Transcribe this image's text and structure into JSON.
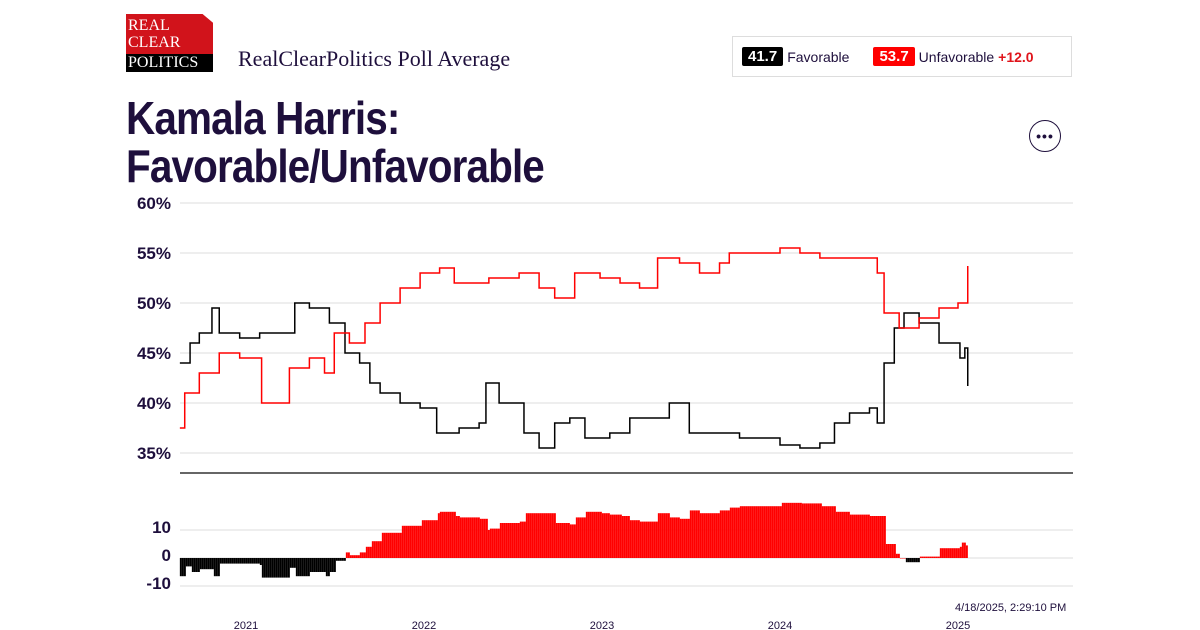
{
  "logo": {
    "line1": "REAL",
    "line2": "CLEAR",
    "line3": "POLITICS"
  },
  "header": {
    "subtitle": "RealClearPolitics Poll Average"
  },
  "legend": {
    "favorable_value": "41.7",
    "favorable_label": "Favorable",
    "unfavorable_value": "53.7",
    "unfavorable_label": "Unfavorable",
    "spread": "+12.0"
  },
  "title": {
    "line1": "Kamala Harris:",
    "line2": "Favorable/Unfavorable"
  },
  "more_button": "•••",
  "timestamp": "4/18/2025, 2:29:10 PM",
  "colors": {
    "favorable": "#000000",
    "unfavorable": "#ff0000",
    "text": "#1e0f3c"
  },
  "chart_data": [
    {
      "type": "line",
      "yticks": [
        "60%",
        "55%",
        "50%",
        "45%",
        "40%",
        "35%"
      ],
      "ylim": [
        35,
        60
      ],
      "xlim": [
        "2020-08-18",
        "2025-01-21"
      ],
      "grid": true,
      "series": [
        {
          "name": "Favorable",
          "color": "#000000",
          "points": [
            [
              "2020-08-18",
              44
            ],
            [
              "2020-09-08",
              46
            ],
            [
              "2020-09-27",
              47
            ],
            [
              "2020-10-23",
              49.5
            ],
            [
              "2020-11-07",
              47
            ],
            [
              "2020-12-19",
              46.5
            ],
            [
              "2021-01-29",
              47
            ],
            [
              "2021-03-11",
              47
            ],
            [
              "2021-04-11",
              50
            ],
            [
              "2021-05-11",
              49.5
            ],
            [
              "2021-06-21",
              48
            ],
            [
              "2021-07-23",
              45
            ],
            [
              "2021-08-22",
              44
            ],
            [
              "2021-09-12",
              42
            ],
            [
              "2021-10-03",
              41
            ],
            [
              "2021-11-13",
              40
            ],
            [
              "2021-12-24",
              39.5
            ],
            [
              "2022-01-27",
              37
            ],
            [
              "2022-03-14",
              37.5
            ],
            [
              "2022-04-24",
              38
            ],
            [
              "2022-05-08",
              42
            ],
            [
              "2022-06-04",
              40
            ],
            [
              "2022-07-05",
              40
            ],
            [
              "2022-07-25",
              37
            ],
            [
              "2022-08-25",
              35.5
            ],
            [
              "2022-09-26",
              38
            ],
            [
              "2022-10-27",
              38.5
            ],
            [
              "2022-11-27",
              36.5
            ],
            [
              "2023-01-17",
              37
            ],
            [
              "2023-02-27",
              38.5
            ],
            [
              "2023-04-09",
              38.5
            ],
            [
              "2023-05-19",
              40
            ],
            [
              "2023-06-29",
              37
            ],
            [
              "2023-08-09",
              37
            ],
            [
              "2023-10-10",
              36.5
            ],
            [
              "2023-11-20",
              36.5
            ],
            [
              "2024-01-01",
              35.8
            ],
            [
              "2024-02-11",
              35.5
            ],
            [
              "2024-03-23",
              36
            ],
            [
              "2024-04-22",
              38
            ],
            [
              "2024-05-23",
              39
            ],
            [
              "2024-07-03",
              39.5
            ],
            [
              "2024-07-19",
              38
            ],
            [
              "2024-08-02",
              44
            ],
            [
              "2024-08-23",
              47.5
            ],
            [
              "2024-09-12",
              49
            ],
            [
              "2024-10-13",
              48
            ],
            [
              "2024-11-23",
              46
            ],
            [
              "2025-01-05",
              44.5
            ],
            [
              "2025-01-15",
              45.5
            ],
            [
              "2025-01-21",
              41.7
            ]
          ]
        },
        {
          "name": "Unfavorable",
          "color": "#ff0000",
          "points": [
            [
              "2020-08-18",
              37.5
            ],
            [
              "2020-08-28",
              41
            ],
            [
              "2020-09-27",
              43
            ],
            [
              "2020-11-07",
              45
            ],
            [
              "2020-12-19",
              44.5
            ],
            [
              "2021-02-02",
              40
            ],
            [
              "2021-03-21",
              40
            ],
            [
              "2021-03-31",
              43.5
            ],
            [
              "2021-05-11",
              44.5
            ],
            [
              "2021-06-11",
              43
            ],
            [
              "2021-07-01",
              47
            ],
            [
              "2021-08-01",
              46
            ],
            [
              "2021-09-02",
              48
            ],
            [
              "2021-10-03",
              50
            ],
            [
              "2021-11-13",
              51.5
            ],
            [
              "2021-12-24",
              53
            ],
            [
              "2022-02-02",
              53.5
            ],
            [
              "2022-03-04",
              52
            ],
            [
              "2022-04-04",
              52
            ],
            [
              "2022-05-14",
              52.5
            ],
            [
              "2022-07-15",
              53
            ],
            [
              "2022-08-25",
              51.5
            ],
            [
              "2022-09-26",
              50.5
            ],
            [
              "2022-11-06",
              53
            ],
            [
              "2022-12-28",
              52.5
            ],
            [
              "2023-02-07",
              52
            ],
            [
              "2023-03-19",
              51.5
            ],
            [
              "2023-04-25",
              54.5
            ],
            [
              "2023-06-09",
              54
            ],
            [
              "2023-07-20",
              53
            ],
            [
              "2023-08-30",
              54
            ],
            [
              "2023-09-19",
              55
            ],
            [
              "2023-11-20",
              55
            ],
            [
              "2024-01-01",
              55.5
            ],
            [
              "2024-02-11",
              55
            ],
            [
              "2024-03-23",
              54.5
            ],
            [
              "2024-05-23",
              54.5
            ],
            [
              "2024-07-03",
              54.5
            ],
            [
              "2024-07-19",
              53
            ],
            [
              "2024-08-02",
              49
            ],
            [
              "2024-09-02",
              47.5
            ],
            [
              "2024-10-13",
              48.5
            ],
            [
              "2024-11-23",
              49.5
            ],
            [
              "2025-01-01",
              50
            ],
            [
              "2025-01-21",
              53.7
            ]
          ]
        }
      ]
    },
    {
      "type": "bar",
      "description_of_values": "spread = Unfavorable - Favorable",
      "yticks": [
        "10",
        "0",
        "-10"
      ],
      "ylim": [
        -12,
        20
      ],
      "xticks": [
        "2021",
        "2022",
        "2023",
        "2024",
        "2025"
      ],
      "positive_color": "#ff0000",
      "negative_color": "#000000"
    }
  ]
}
